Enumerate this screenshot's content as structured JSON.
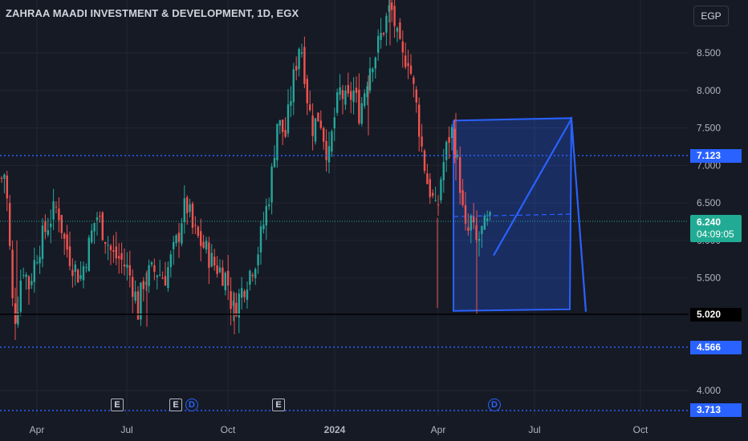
{
  "header": {
    "title": "ZAHRAA MAADI INVESTMENT & DEVELOPMENT, 1D, EGX",
    "currency": "EGP"
  },
  "price_levels": {
    "level_1": "7.123",
    "level_2": "5.020",
    "level_3": "4.566",
    "level_4": "3.713",
    "current_price": "6.240",
    "countdown": "04:09:05"
  },
  "events": {
    "e1": "E",
    "e2": "E",
    "d1": "D",
    "e3": "E",
    "d2": "D"
  },
  "colors": {
    "background": "#161a25",
    "up": "#26a69a",
    "down": "#ef5350",
    "level_line": "#2962ff",
    "current_line": "#22ab94",
    "drawing_fill": "#1e3a8a"
  },
  "chart_data": {
    "type": "candlestick",
    "title": "ZAHRAA MAADI INVESTMENT & DEVELOPMENT, 1D, EGX",
    "y_axis_ticks": [
      "4.000",
      "5.500",
      "6.000",
      "6.500",
      "7.000",
      "7.500",
      "8.000",
      "8.500"
    ],
    "x_axis_ticks": [
      "Apr",
      "Jul",
      "Oct",
      "2024",
      "Apr",
      "Jul",
      "Oct"
    ],
    "ylim": [
      3.6,
      9.2
    ],
    "horizontal_levels": [
      7.123,
      5.02,
      4.566,
      3.713
    ],
    "current_price": 6.24,
    "price_path": [
      [
        0,
        6.6
      ],
      [
        4,
        7.05
      ],
      [
        10,
        6.4
      ],
      [
        15,
        5.2
      ],
      [
        20,
        4.95
      ],
      [
        28,
        5.7
      ],
      [
        36,
        5.4
      ],
      [
        45,
        5.8
      ],
      [
        55,
        6.1
      ],
      [
        65,
        6.35
      ],
      [
        72,
        6.45
      ],
      [
        80,
        6.0
      ],
      [
        90,
        5.7
      ],
      [
        100,
        5.5
      ],
      [
        110,
        5.9
      ],
      [
        120,
        6.35
      ],
      [
        130,
        6.1
      ],
      [
        140,
        5.8
      ],
      [
        150,
        5.75
      ],
      [
        160,
        5.6
      ],
      [
        168,
        5.3
      ],
      [
        172,
        5.05
      ],
      [
        178,
        5.45
      ],
      [
        185,
        5.55
      ],
      [
        195,
        5.6
      ],
      [
        205,
        5.5
      ],
      [
        215,
        5.8
      ],
      [
        222,
        6.05
      ],
      [
        228,
        6.4
      ],
      [
        234,
        6.45
      ],
      [
        240,
        6.15
      ],
      [
        248,
        6.0
      ],
      [
        255,
        5.9
      ],
      [
        265,
        5.7
      ],
      [
        275,
        5.6
      ],
      [
        283,
        5.5
      ],
      [
        290,
        5.05
      ],
      [
        296,
        5.2
      ],
      [
        304,
        5.4
      ],
      [
        312,
        5.6
      ],
      [
        320,
        5.8
      ],
      [
        328,
        6.2
      ],
      [
        335,
        6.6
      ],
      [
        340,
        7.0
      ],
      [
        345,
        7.6
      ],
      [
        350,
        7.5
      ],
      [
        356,
        7.4
      ],
      [
        362,
        7.9
      ],
      [
        368,
        8.3
      ],
      [
        374,
        8.7
      ],
      [
        378,
        8.4
      ],
      [
        384,
        7.8
      ],
      [
        390,
        7.5
      ],
      [
        398,
        7.7
      ],
      [
        405,
        7.3
      ],
      [
        410,
        7.1
      ],
      [
        416,
        7.6
      ],
      [
        424,
        8.0
      ],
      [
        432,
        7.8
      ],
      [
        440,
        8.0
      ],
      [
        448,
        7.7
      ],
      [
        456,
        8.1
      ],
      [
        462,
        8.4
      ],
      [
        468,
        8.5
      ],
      [
        474,
        8.7
      ],
      [
        480,
        8.9
      ],
      [
        486,
        9.1
      ],
      [
        490,
        9.0
      ],
      [
        496,
        8.6
      ],
      [
        502,
        8.4
      ],
      [
        508,
        8.5
      ],
      [
        514,
        8.1
      ],
      [
        520,
        7.7
      ],
      [
        526,
        7.2
      ],
      [
        532,
        6.8
      ],
      [
        538,
        6.6
      ],
      [
        544,
        6.3
      ],
      [
        550,
        6.9
      ],
      [
        556,
        7.2
      ],
      [
        562,
        7.5
      ],
      [
        566,
        7.3
      ],
      [
        570,
        7.0
      ],
      [
        574,
        6.7
      ],
      [
        578,
        6.2
      ],
      [
        582,
        6.0
      ],
      [
        586,
        6.3
      ],
      [
        590,
        6.1
      ],
      [
        594,
        5.95
      ],
      [
        598,
        6.05
      ],
      [
        602,
        6.15
      ],
      [
        608,
        6.2
      ],
      [
        614,
        6.24
      ]
    ],
    "drawings": {
      "range_box": {
        "x_start": 565,
        "x_end": 712,
        "y_top": 7.62,
        "y_bottom": 5.05
      },
      "projection_line": [
        [
          615,
          5.8
        ],
        [
          712,
          7.62
        ],
        [
          730,
          5.05
        ]
      ],
      "dashed_mid": {
        "y": 6.33
      }
    }
  }
}
